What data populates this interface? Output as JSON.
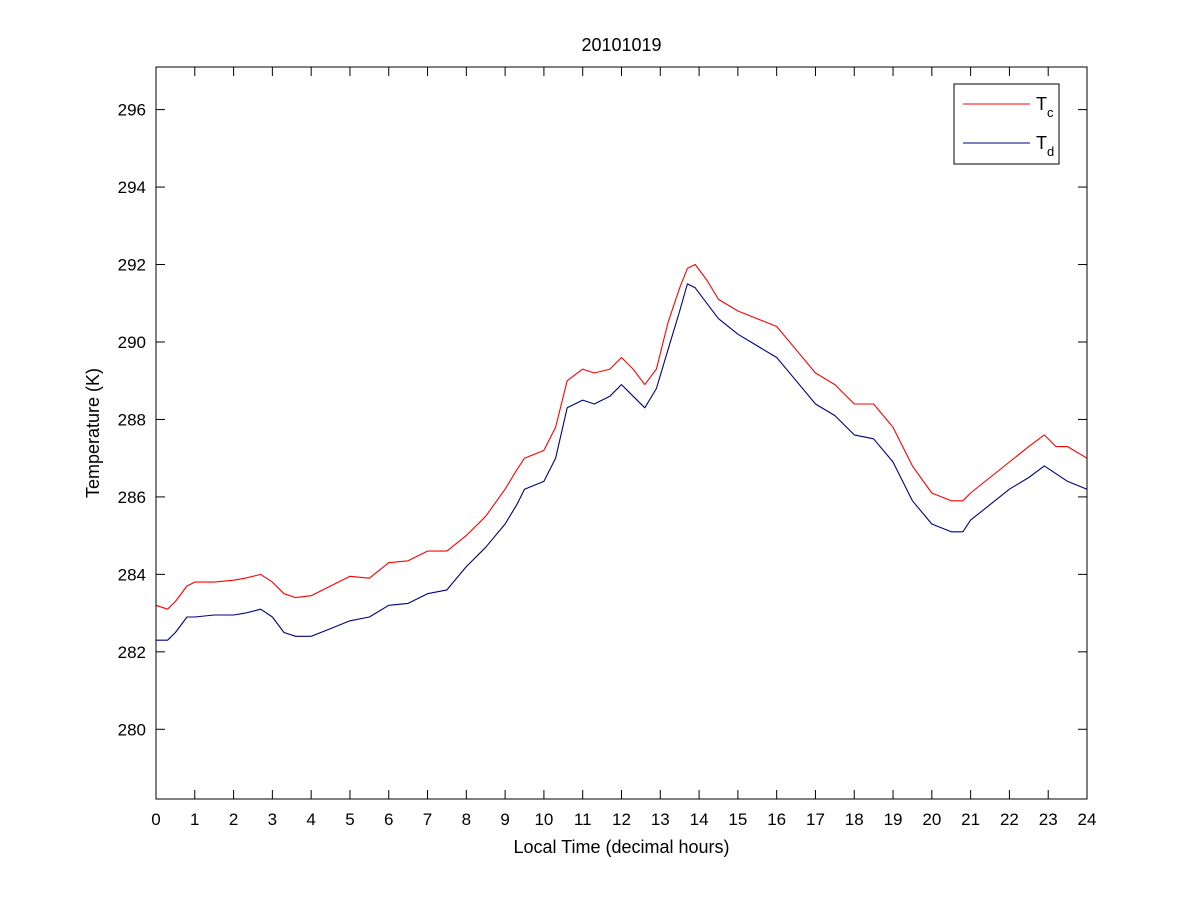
{
  "chart_data": {
    "type": "line",
    "title": "20101019",
    "xlabel": "Local Time (decimal hours)",
    "ylabel": "Temperature (K)",
    "xlim": [
      0,
      24
    ],
    "ylim": [
      278.2,
      297.1
    ],
    "xticks": [
      0,
      1,
      2,
      3,
      4,
      5,
      6,
      7,
      8,
      9,
      10,
      11,
      12,
      13,
      14,
      15,
      16,
      17,
      18,
      19,
      20,
      21,
      22,
      23,
      24
    ],
    "yticks": [
      280,
      282,
      284,
      286,
      288,
      290,
      292,
      294,
      296
    ],
    "grid": false,
    "legend": {
      "position": "top-right",
      "entries": [
        {
          "main": "T",
          "sub": "c",
          "color": "#ff0000"
        },
        {
          "main": "T",
          "sub": "d",
          "color": "#000080"
        }
      ]
    },
    "series": [
      {
        "name": "Tc",
        "color": "#ff0000",
        "x": [
          0,
          0.3,
          0.5,
          0.8,
          1.0,
          1.5,
          2.0,
          2.3,
          2.7,
          3.0,
          3.3,
          3.6,
          4.0,
          4.5,
          5.0,
          5.5,
          6.0,
          6.5,
          7.0,
          7.5,
          8.0,
          8.5,
          9.0,
          9.3,
          9.5,
          10.0,
          10.3,
          10.6,
          11.0,
          11.3,
          11.7,
          12.0,
          12.3,
          12.6,
          12.9,
          13.2,
          13.5,
          13.7,
          13.9,
          14.2,
          14.5,
          15.0,
          15.5,
          16.0,
          16.5,
          17.0,
          17.5,
          18.0,
          18.5,
          19.0,
          19.5,
          20.0,
          20.5,
          20.8,
          21.0,
          21.5,
          22.0,
          22.5,
          22.9,
          23.2,
          23.5,
          24.0
        ],
        "y": [
          283.2,
          283.1,
          283.3,
          283.7,
          283.8,
          283.8,
          283.85,
          283.9,
          284.0,
          283.8,
          283.5,
          283.4,
          283.45,
          283.7,
          283.95,
          283.9,
          284.3,
          284.35,
          284.6,
          284.6,
          285.0,
          285.5,
          286.2,
          286.7,
          287.0,
          287.2,
          287.8,
          289.0,
          289.3,
          289.2,
          289.3,
          289.6,
          289.3,
          288.9,
          289.3,
          290.5,
          291.4,
          291.9,
          292.0,
          291.6,
          291.1,
          290.8,
          290.6,
          290.4,
          289.8,
          289.2,
          288.9,
          288.4,
          288.4,
          287.8,
          286.8,
          286.1,
          285.9,
          285.9,
          286.1,
          286.5,
          286.9,
          287.3,
          287.6,
          287.3,
          287.3,
          287.0
        ]
      },
      {
        "name": "Td",
        "color": "#000080",
        "x": [
          0,
          0.3,
          0.5,
          0.8,
          1.0,
          1.5,
          2.0,
          2.3,
          2.7,
          3.0,
          3.3,
          3.6,
          4.0,
          4.5,
          5.0,
          5.5,
          6.0,
          6.5,
          7.0,
          7.5,
          8.0,
          8.5,
          9.0,
          9.3,
          9.5,
          10.0,
          10.3,
          10.6,
          11.0,
          11.3,
          11.7,
          12.0,
          12.3,
          12.6,
          12.9,
          13.2,
          13.5,
          13.7,
          13.9,
          14.2,
          14.5,
          15.0,
          15.5,
          16.0,
          16.5,
          17.0,
          17.5,
          18.0,
          18.5,
          19.0,
          19.5,
          20.0,
          20.5,
          20.8,
          21.0,
          21.5,
          22.0,
          22.5,
          22.9,
          23.2,
          23.5,
          24.0
        ],
        "y": [
          282.3,
          282.3,
          282.5,
          282.9,
          282.9,
          282.95,
          282.95,
          283.0,
          283.1,
          282.9,
          282.5,
          282.4,
          282.4,
          282.6,
          282.8,
          282.9,
          283.2,
          283.25,
          283.5,
          283.6,
          284.2,
          284.7,
          285.3,
          285.8,
          286.2,
          286.4,
          287.0,
          288.3,
          288.5,
          288.4,
          288.6,
          288.9,
          288.6,
          288.3,
          288.8,
          289.8,
          290.8,
          291.5,
          291.4,
          291.0,
          290.6,
          290.2,
          289.9,
          289.6,
          289.0,
          288.4,
          288.1,
          287.6,
          287.5,
          286.9,
          285.9,
          285.3,
          285.1,
          285.1,
          285.4,
          285.8,
          286.2,
          286.5,
          286.8,
          286.6,
          286.4,
          286.2
        ]
      }
    ]
  }
}
